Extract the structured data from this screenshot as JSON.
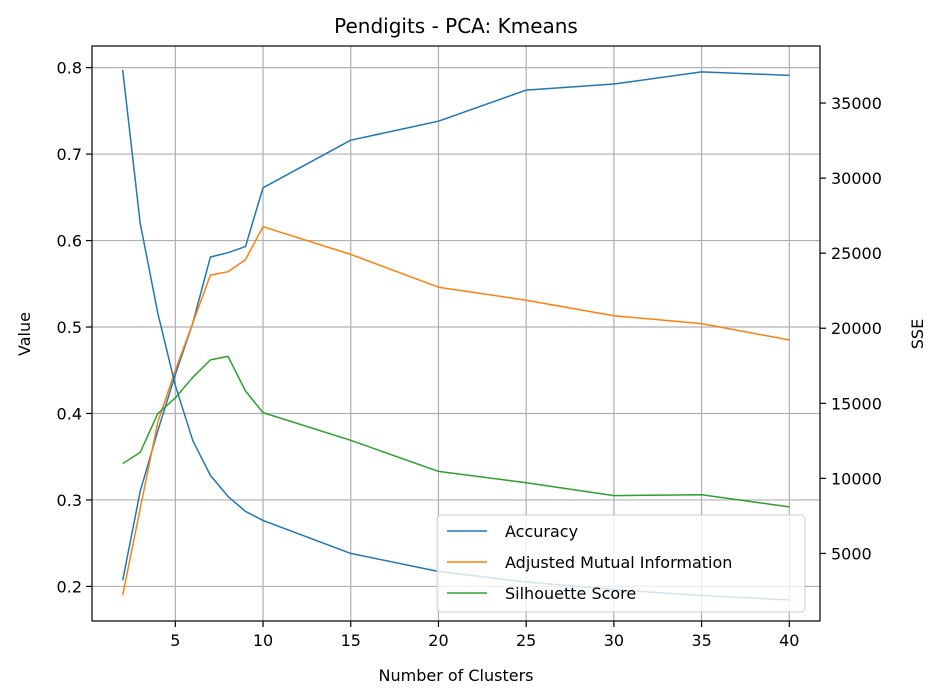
{
  "chart_data": {
    "type": "line",
    "title": "Pendigits - PCA: Kmeans",
    "xlabel": "Number of Clusters",
    "ylabel": "Value",
    "y2label": "SSE",
    "x": [
      2,
      3,
      4,
      5,
      6,
      7,
      8,
      9,
      10,
      15,
      20,
      25,
      30,
      35,
      40
    ],
    "xlim": [
      0.25,
      41.75
    ],
    "ylim": [
      0.16,
      0.825
    ],
    "y2lim": [
      500,
      38800
    ],
    "xticks": [
      5,
      10,
      15,
      20,
      25,
      30,
      35,
      40
    ],
    "yticks": [
      0.2,
      0.3,
      0.4,
      0.5,
      0.6,
      0.7,
      0.8
    ],
    "y2ticks": [
      5000,
      10000,
      15000,
      20000,
      25000,
      30000,
      35000
    ],
    "grid": true,
    "legend_position": "lower-right",
    "series": [
      {
        "name": "Accuracy",
        "axis": "left",
        "color": "#1f77b4",
        "values": [
          0.207,
          0.31,
          0.38,
          0.445,
          0.505,
          0.581,
          0.586,
          0.593,
          0.661,
          0.716,
          0.738,
          0.774,
          0.781,
          0.795,
          0.791
        ]
      },
      {
        "name": "Adjusted Mutual Information",
        "axis": "left",
        "color": "#ff7f0e",
        "values": [
          0.19,
          0.29,
          0.39,
          0.45,
          0.505,
          0.56,
          0.564,
          0.578,
          0.616,
          0.584,
          0.546,
          0.531,
          0.513,
          0.504,
          0.485
        ]
      },
      {
        "name": "Silhouette Score",
        "axis": "left",
        "color": "#2ca02c",
        "values": [
          0.342,
          0.355,
          0.4,
          0.418,
          0.442,
          0.462,
          0.466,
          0.426,
          0.401,
          0.369,
          0.333,
          0.32,
          0.305,
          0.306,
          0.292
        ]
      },
      {
        "name": "SSE",
        "axis": "right",
        "color": "#1f77b4",
        "values": [
          37200,
          27000,
          21000,
          16200,
          12500,
          10200,
          8800,
          7800,
          7200,
          5000,
          3800,
          3100,
          2600,
          2200,
          1900
        ]
      }
    ]
  }
}
